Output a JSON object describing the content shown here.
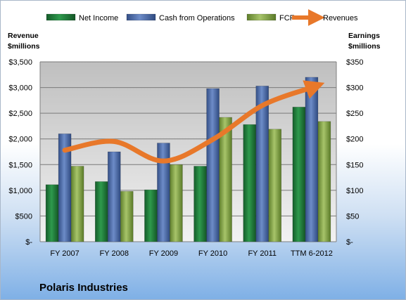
{
  "chart_data": {
    "type": "bar",
    "company": "Polaris Industries",
    "categories": [
      "FY 2007",
      "FY 2008",
      "FY 2009",
      "FY 2010",
      "FY 2011",
      "TTM 6-2012"
    ],
    "series": [
      {
        "name": "Net Income",
        "axis": "right",
        "values": [
          111,
          117,
          101,
          147,
          228,
          262
        ],
        "color": "#1f7a3a"
      },
      {
        "name": "Cash from Operations",
        "axis": "right",
        "values": [
          210,
          175,
          192,
          298,
          303,
          320
        ],
        "color": "#4a6aa8"
      },
      {
        "name": "FCF",
        "axis": "right",
        "values": [
          147,
          98,
          150,
          242,
          219,
          234
        ],
        "color": "#7fa043"
      },
      {
        "name": "Revenues",
        "axis": "left",
        "type": "line",
        "values": [
          1780,
          1950,
          1570,
          1990,
          2650,
          3000
        ],
        "color": "#e8782a"
      }
    ],
    "left_axis": {
      "title_line1": "Revenue",
      "title_line2": "$millions",
      "min": 0,
      "max": 3500,
      "step": 500,
      "ticks": [
        "$-",
        "$500",
        "$1,000",
        "$1,500",
        "$2,000",
        "$2,500",
        "$3,000",
        "$3,500"
      ]
    },
    "right_axis": {
      "title_line1": "Earnings",
      "title_line2": "$millions",
      "min": 0,
      "max": 350,
      "step": 50,
      "ticks": [
        "$-",
        "$50",
        "$100",
        "$150",
        "$200",
        "$250",
        "$300",
        "$350"
      ]
    },
    "grid": true,
    "legend": "top"
  }
}
